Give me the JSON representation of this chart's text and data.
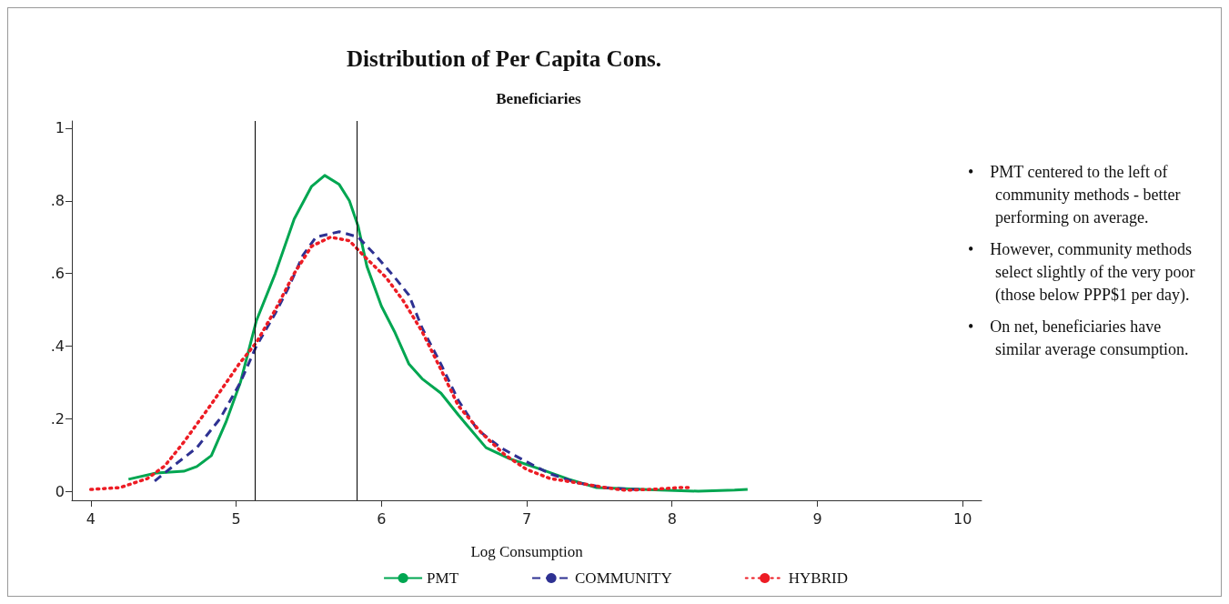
{
  "chart_data": {
    "type": "line",
    "title": "Distribution of Per Capita Cons.",
    "subtitle": "Beneficiaries",
    "xlabel": "Log Consumption",
    "xlim": [
      3.87,
      10.13
    ],
    "xticks": [
      4,
      5,
      6,
      7,
      8,
      9,
      10
    ],
    "ylim": [
      -0.025,
      1.02
    ],
    "yticks": [
      {
        "value": 0,
        "label": "0"
      },
      {
        "value": 0.2,
        "label": ".2"
      },
      {
        "value": 0.4,
        "label": ".4"
      },
      {
        "value": 0.6,
        "label": ".6"
      },
      {
        "value": 0.8,
        "label": ".8"
      },
      {
        "value": 1,
        "label": "1"
      }
    ],
    "grid": false,
    "legend": "bottom",
    "marker": "none",
    "ref_lines": [
      {
        "axis": "x",
        "value": 5.13,
        "color": "#000000"
      },
      {
        "axis": "x",
        "value": 5.83,
        "color": "#000000"
      }
    ],
    "annotations": [
      "•    PMT centered to the left of community methods - better performing on average.",
      "•    However, community methods select slightly of the very poor (those below PPP$1 per day).",
      "•    On net, beneficiaries have similar average consumption."
    ],
    "series": [
      {
        "name": "PMT",
        "color": "#00a651",
        "line_style": "solid",
        "x": [
          4.26,
          4.45,
          4.64,
          4.73,
          4.83,
          4.93,
          5.03,
          5.14,
          5.27,
          5.4,
          5.52,
          5.61,
          5.71,
          5.78,
          5.84,
          5.9,
          6.0,
          6.09,
          6.19,
          6.28,
          6.41,
          6.53,
          6.72,
          6.88,
          7.1,
          7.29,
          7.48,
          7.8,
          7.92,
          8.18,
          8.43,
          8.52
        ],
        "values": [
          0.033,
          0.05,
          0.055,
          0.068,
          0.098,
          0.19,
          0.3,
          0.47,
          0.6,
          0.75,
          0.84,
          0.87,
          0.845,
          0.8,
          0.73,
          0.62,
          0.51,
          0.44,
          0.35,
          0.31,
          0.27,
          0.21,
          0.12,
          0.09,
          0.06,
          0.033,
          0.01,
          0.005,
          0.003,
          0.0,
          0.003,
          0.005
        ]
      },
      {
        "name": "COMMUNITY",
        "color": "#2e3192",
        "line_style": "dashed",
        "x": [
          4.44,
          4.57,
          4.73,
          4.89,
          5.03,
          5.14,
          5.27,
          5.36,
          5.46,
          5.55,
          5.71,
          5.84,
          5.96,
          6.09,
          6.19,
          6.28,
          6.41,
          6.53,
          6.66,
          6.82,
          6.98,
          7.16,
          7.35,
          7.54,
          7.73,
          7.8
        ],
        "values": [
          0.028,
          0.07,
          0.12,
          0.2,
          0.3,
          0.4,
          0.49,
          0.56,
          0.65,
          0.7,
          0.715,
          0.7,
          0.65,
          0.59,
          0.54,
          0.45,
          0.35,
          0.25,
          0.17,
          0.12,
          0.085,
          0.048,
          0.023,
          0.01,
          0.005,
          0.005
        ]
      },
      {
        "name": "HYBRID",
        "color": "#ed1c24",
        "line_style": "dotted",
        "x": [
          4.0,
          4.2,
          4.39,
          4.51,
          4.64,
          4.83,
          5.02,
          5.14,
          5.27,
          5.4,
          5.52,
          5.65,
          5.78,
          5.9,
          6.03,
          6.15,
          6.28,
          6.41,
          6.53,
          6.69,
          6.85,
          7.0,
          7.16,
          7.35,
          7.54,
          7.67,
          7.86,
          8.05,
          8.12
        ],
        "values": [
          0.005,
          0.01,
          0.035,
          0.07,
          0.135,
          0.24,
          0.35,
          0.41,
          0.5,
          0.6,
          0.675,
          0.7,
          0.69,
          0.64,
          0.59,
          0.525,
          0.44,
          0.335,
          0.235,
          0.16,
          0.1,
          0.06,
          0.035,
          0.023,
          0.01,
          0.003,
          0.005,
          0.01,
          0.01
        ]
      }
    ]
  }
}
